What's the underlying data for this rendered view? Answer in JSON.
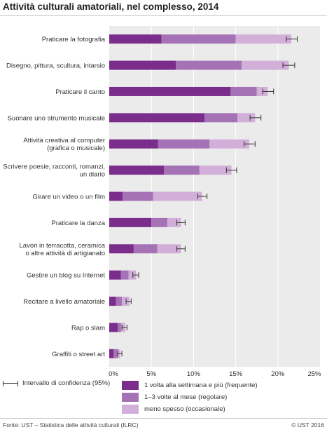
{
  "title": "Attività culturali amatoriali, nel complesso, 2014",
  "colors": {
    "frequente": "#7b2d8b",
    "regolare": "#a572b5",
    "occasionale": "#d2afd9",
    "plot_background": "#ebebeb",
    "gridline": "#ffffff",
    "error_bar": "#333333"
  },
  "legend": {
    "ci_label": "Intervallo di confidenza (95%)",
    "series_labels": [
      "1 volta alla settimana e più (frequente)",
      "1–3 volte al mese (regolare)",
      "meno spesso (occasionale)"
    ]
  },
  "footer": {
    "source": "Fonte: UST – Statistica delle attività culturali (ILRC)",
    "copyright": "© UST 2016"
  },
  "chart_data": {
    "type": "bar",
    "orientation": "horizontal",
    "stacked": true,
    "title": "Attività culturali amatoriali, nel complesso, 2014",
    "categories": [
      [
        "Praticare la fotografia"
      ],
      [
        "Disegno, pittura, scultura, intarsio"
      ],
      [
        "Praticare il canto"
      ],
      [
        "Suonare uno strumento musicale"
      ],
      [
        "Attività creativa al computer",
        "(grafica o musicale)"
      ],
      [
        "Scrivere poesie, racconti, romanzi,",
        "un diario"
      ],
      [
        "Girare un video o un film"
      ],
      [
        "Praticare la danza"
      ],
      [
        "Lavori in terracotta, ceramica",
        "o altre attività di artigianato"
      ],
      [
        "Gestire un blog su Internet"
      ],
      [
        "Recitare a livello amatoriale"
      ],
      [
        "Rap o slam"
      ],
      [
        "Graffiti o street art"
      ]
    ],
    "series": [
      {
        "name": "1 volta alla settimana e più (frequente)",
        "values": [
          6.2,
          7.9,
          14.4,
          11.3,
          5.8,
          6.5,
          1.6,
          5.0,
          2.9,
          1.4,
          0.8,
          1.0,
          0.5
        ]
      },
      {
        "name": "1–3 volte al mese (regolare)",
        "values": [
          8.8,
          7.8,
          3.1,
          3.9,
          6.1,
          4.2,
          3.6,
          1.9,
          2.8,
          0.9,
          0.7,
          0.4,
          0.5
        ]
      },
      {
        "name": "meno spesso (occasionale)",
        "values": [
          6.6,
          5.6,
          1.3,
          2.1,
          4.7,
          3.8,
          5.8,
          1.6,
          2.8,
          0.9,
          0.9,
          0.5,
          0.3
        ]
      }
    ],
    "confidence_interval": [
      [
        21.0,
        22.3
      ],
      [
        20.6,
        22.0
      ],
      [
        18.2,
        19.5
      ],
      [
        16.7,
        18.0
      ],
      [
        16.0,
        17.3
      ],
      [
        13.9,
        15.1
      ],
      [
        10.5,
        11.6
      ],
      [
        8.0,
        9.0
      ],
      [
        8.0,
        9.0
      ],
      [
        2.8,
        3.5
      ],
      [
        2.0,
        2.6
      ],
      [
        1.5,
        2.1
      ],
      [
        1.0,
        1.5
      ]
    ],
    "x_ticks": [
      "0%",
      "5%",
      "10%",
      "15%",
      "20%",
      "25%"
    ],
    "xlim": [
      0,
      25
    ],
    "grid": true,
    "legend_position": "bottom"
  }
}
